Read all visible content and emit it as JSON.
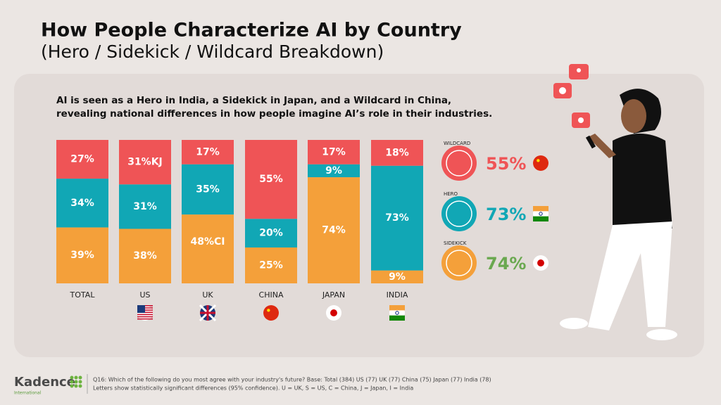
{
  "chart_data": {
    "type": "stacked-bar",
    "title": "How People Characterize AI by Country",
    "subtitle": "(Hero / Sidekick / Wildcard Breakdown)",
    "headline": [
      "AI is seen as a Hero in India, a Sidekick in Japan, and a Wildcard in China,",
      "revealing national differences in how people imagine AI’s role in their industries."
    ],
    "categories": [
      "TOTAL",
      "US",
      "UK",
      "CHINA",
      "JAPAN",
      "INDIA"
    ],
    "ylim": [
      0,
      100
    ],
    "series": [
      {
        "name": "SIDEKICK",
        "color": "#f4a03a",
        "values": [
          39,
          38,
          48,
          25,
          74,
          9
        ],
        "value_labels": [
          "39%",
          "38%",
          "48%CI",
          "25%",
          "74%",
          "9%"
        ]
      },
      {
        "name": "HERO",
        "color": "#11a7b5",
        "values": [
          34,
          31,
          35,
          20,
          9,
          73
        ],
        "value_labels": [
          "34%",
          "31%",
          "35%",
          "20%",
          "9%",
          "73%"
        ]
      },
      {
        "name": "WILDCARD",
        "color": "#ef5456",
        "values": [
          27,
          31,
          17,
          55,
          17,
          18
        ],
        "value_labels": [
          "27%",
          "31%KJ",
          "17%",
          "55%",
          "17%",
          "18%"
        ]
      }
    ],
    "footnote": [
      "Q16: Which of the following do you most agree with your industry's future? Base: Total (384) US (77) UK (77) China (75) Japan (77) India (78)",
      "Letters show statistically significant differences (95% confidence). U = UK, S = US, C = China, J = Japan, I = India"
    ],
    "logo": {
      "name": "Kadence",
      "tagline": "International"
    }
  }
}
